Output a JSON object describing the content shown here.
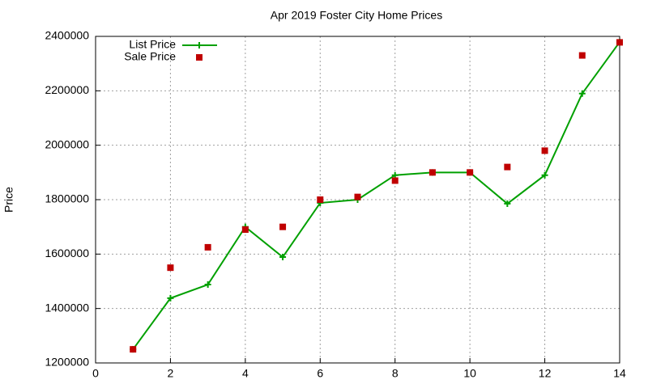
{
  "chart_data": {
    "type": "line",
    "title": "Apr 2019 Foster City Home Prices",
    "y_label": "Price",
    "x": [
      1,
      2,
      3,
      4,
      5,
      6,
      7,
      8,
      9,
      10,
      11,
      12,
      13,
      14
    ],
    "series": [
      {
        "name": "List Price",
        "color": "#00a000",
        "style": "linespoints",
        "values": [
          1250000,
          1438000,
          1488000,
          1700000,
          1589000,
          1788000,
          1800000,
          1890000,
          1900000,
          1900000,
          1785000,
          1890000,
          2190000,
          2379000
        ]
      },
      {
        "name": "Sale Price",
        "color": "#c00000",
        "style": "points",
        "values": [
          1250000,
          1550000,
          1625000,
          1690000,
          1700000,
          1800000,
          1810000,
          1870000,
          1900000,
          1900000,
          1920000,
          1980000,
          2330000,
          2378000
        ]
      }
    ],
    "xlim": [
      0,
      14
    ],
    "xticks": [
      0,
      2,
      4,
      6,
      8,
      10,
      12,
      14
    ],
    "ylim": [
      1200000,
      2400000
    ],
    "yticks": [
      1200000,
      1400000,
      1600000,
      1800000,
      2000000,
      2200000,
      2400000
    ],
    "grid": true,
    "legend": "top-left"
  }
}
